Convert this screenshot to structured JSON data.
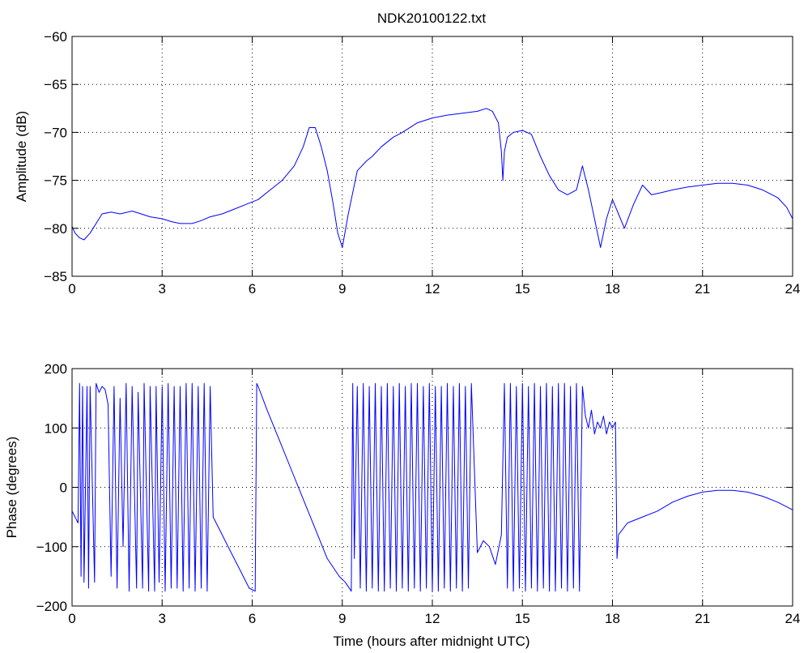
{
  "figure": {
    "title": "NDK20100122.txt",
    "line_color": "#0000ff",
    "axis_color": "#000000",
    "grid_color": "#000000",
    "background": "#ffffff"
  },
  "chart_data": [
    {
      "type": "line",
      "panel": "top",
      "title": "NDK20100122.txt",
      "xlabel": "",
      "ylabel": "Amplitude (dB)",
      "xlim": [
        0,
        24
      ],
      "ylim": [
        -85,
        -60
      ],
      "xticks": [
        0,
        3,
        6,
        9,
        12,
        15,
        18,
        21,
        24
      ],
      "yticks": [
        -85,
        -80,
        -75,
        -70,
        -65,
        -60
      ],
      "grid": true,
      "series": [
        {
          "x": [
            0,
            0.1,
            0.25,
            0.4,
            0.6,
            0.8,
            1.0,
            1.3,
            1.6,
            2.0,
            2.3,
            2.6,
            3.0,
            3.3,
            3.6,
            4.0,
            4.3,
            4.6,
            5.0,
            5.4,
            5.8,
            6.2,
            6.6,
            7.0,
            7.4,
            7.7,
            7.9,
            8.1,
            8.3,
            8.5,
            8.7,
            8.85,
            9.0,
            9.2,
            9.5,
            9.8,
            10.0,
            10.3,
            10.7,
            11.0,
            11.5,
            12.0,
            12.5,
            13.0,
            13.5,
            13.8,
            14.0,
            14.2,
            14.3,
            14.35,
            14.4,
            14.5,
            14.7,
            15.0,
            15.3,
            15.6,
            15.9,
            16.2,
            16.5,
            16.8,
            17.0,
            17.2,
            17.4,
            17.6,
            17.8,
            18.0,
            18.2,
            18.4,
            18.7,
            19.0,
            19.3,
            19.6,
            20.0,
            20.5,
            21.0,
            21.5,
            22.0,
            22.5,
            23.0,
            23.5,
            23.8,
            24.0
          ],
          "values": [
            -79.8,
            -80.5,
            -81.0,
            -81.2,
            -80.5,
            -79.5,
            -78.5,
            -78.3,
            -78.5,
            -78.2,
            -78.5,
            -78.8,
            -79.0,
            -79.3,
            -79.5,
            -79.5,
            -79.2,
            -78.8,
            -78.5,
            -78.0,
            -77.5,
            -77.0,
            -76.0,
            -75.0,
            -73.5,
            -71.5,
            -69.5,
            -69.5,
            -71.5,
            -74.0,
            -77.5,
            -80.5,
            -82.0,
            -78.5,
            -74.0,
            -73.0,
            -72.5,
            -71.5,
            -70.5,
            -70.0,
            -69.0,
            -68.5,
            -68.2,
            -68.0,
            -67.8,
            -67.5,
            -67.8,
            -69.0,
            -72.0,
            -75.0,
            -72.0,
            -70.5,
            -70.0,
            -69.8,
            -70.2,
            -72.5,
            -74.5,
            -76.0,
            -76.5,
            -76.0,
            -73.5,
            -76.0,
            -79.0,
            -82.0,
            -79.0,
            -77.0,
            -78.5,
            -80.0,
            -77.5,
            -75.5,
            -76.5,
            -76.3,
            -76.0,
            -75.7,
            -75.5,
            -75.3,
            -75.3,
            -75.5,
            -76.0,
            -76.8,
            -77.8,
            -79.0
          ]
        }
      ]
    },
    {
      "type": "line",
      "panel": "bottom",
      "title": "",
      "xlabel": "Time (hours after midnight UTC)",
      "ylabel": "Phase (degrees)",
      "xlim": [
        0,
        24
      ],
      "ylim": [
        -200,
        200
      ],
      "xticks": [
        0,
        3,
        6,
        9,
        12,
        15,
        18,
        21,
        24
      ],
      "yticks": [
        -200,
        -100,
        0,
        100,
        200
      ],
      "grid": true,
      "series": [
        {
          "x": [
            0,
            0.2,
            0.25,
            0.3,
            0.35,
            0.4,
            0.5,
            0.55,
            0.6,
            0.75,
            0.8,
            0.9,
            1.0,
            1.1,
            1.2,
            1.3,
            1.4,
            1.5,
            1.6,
            1.7,
            1.8,
            1.9,
            2.0,
            2.15,
            2.2,
            2.35,
            2.4,
            2.55,
            2.6,
            2.75,
            2.8,
            2.9,
            3.0,
            3.1,
            3.2,
            3.3,
            3.4,
            3.5,
            3.6,
            3.7,
            3.8,
            3.9,
            4.0,
            4.1,
            4.2,
            4.3,
            4.4,
            4.5,
            4.6,
            4.7,
            4.8,
            5.0,
            5.3,
            5.6,
            5.9,
            6.1,
            6.15,
            6.2,
            6.5,
            6.9,
            7.3,
            7.7,
            8.1,
            8.5,
            8.9,
            9.1,
            9.3,
            9.35,
            9.4,
            9.5,
            9.6,
            9.7,
            9.8,
            9.9,
            10.0,
            10.1,
            10.2,
            10.3,
            10.4,
            10.5,
            10.6,
            10.7,
            10.8,
            10.9,
            11.0,
            11.1,
            11.2,
            11.3,
            11.4,
            11.5,
            11.6,
            11.7,
            11.8,
            11.9,
            12.0,
            12.1,
            12.2,
            12.3,
            12.4,
            12.5,
            12.6,
            12.7,
            12.8,
            12.9,
            13.0,
            13.1,
            13.2,
            13.3,
            13.5,
            13.7,
            13.9,
            14.1,
            14.3,
            14.4,
            14.5,
            14.6,
            14.7,
            14.8,
            14.9,
            15.0,
            15.1,
            15.2,
            15.3,
            15.4,
            15.5,
            15.6,
            15.7,
            15.8,
            15.9,
            16.0,
            16.1,
            16.2,
            16.3,
            16.4,
            16.5,
            16.6,
            16.7,
            16.8,
            16.9,
            17.0,
            17.1,
            17.2,
            17.3,
            17.4,
            17.5,
            17.6,
            17.7,
            17.8,
            17.9,
            18.0,
            18.1,
            18.15,
            18.2,
            18.5,
            19.0,
            19.5,
            20.0,
            20.5,
            21.0,
            21.5,
            22.0,
            22.5,
            23.0,
            23.5,
            24.0
          ],
          "values": [
            -40,
            -60,
            175,
            -150,
            170,
            -160,
            170,
            -170,
            170,
            -160,
            175,
            160,
            170,
            165,
            140,
            -150,
            170,
            -170,
            150,
            -100,
            175,
            -175,
            170,
            -170,
            160,
            -170,
            175,
            -175,
            170,
            -175,
            170,
            -160,
            170,
            -175,
            175,
            -170,
            170,
            -170,
            170,
            -175,
            175,
            -170,
            175,
            -175,
            170,
            -170,
            175,
            -175,
            170,
            -50,
            -60,
            -80,
            -110,
            -140,
            -170,
            -175,
            175,
            170,
            130,
            80,
            30,
            -20,
            -70,
            -120,
            -150,
            -160,
            -175,
            175,
            -120,
            170,
            -170,
            175,
            -175,
            170,
            -170,
            175,
            -175,
            170,
            -175,
            175,
            -170,
            170,
            -175,
            175,
            -170,
            170,
            -175,
            175,
            -170,
            175,
            -175,
            170,
            -170,
            175,
            -175,
            170,
            -175,
            170,
            -170,
            175,
            -175,
            170,
            -170,
            175,
            -175,
            170,
            -170,
            175,
            -110,
            -90,
            -100,
            -130,
            -80,
            175,
            -170,
            175,
            -175,
            170,
            -170,
            175,
            -175,
            170,
            -170,
            175,
            -175,
            170,
            -170,
            175,
            -175,
            170,
            -175,
            175,
            -170,
            175,
            -175,
            170,
            -170,
            175,
            -175,
            170,
            120,
            100,
            130,
            90,
            110,
            100,
            120,
            90,
            110,
            100,
            110,
            -120,
            -80,
            -60,
            -50,
            -40,
            -25,
            -15,
            -8,
            -5,
            -5,
            -8,
            -15,
            -25,
            -38
          ]
        }
      ]
    }
  ]
}
